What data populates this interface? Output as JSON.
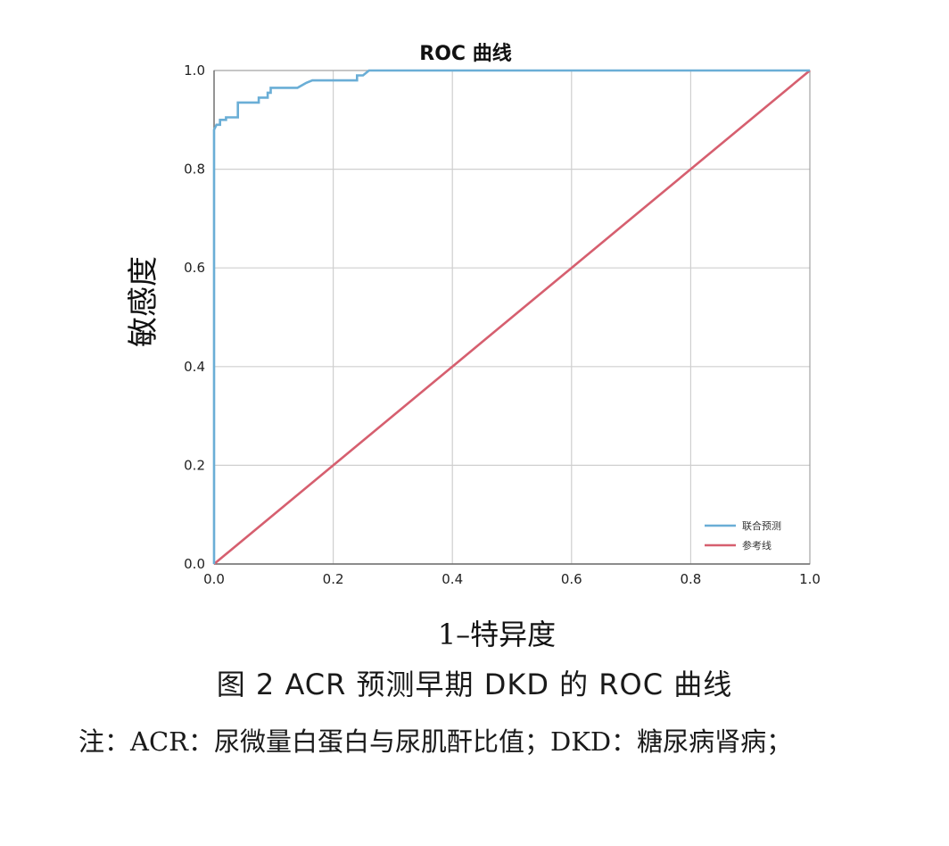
{
  "figure": {
    "caption": "图 2   ACR 预测早期 DKD 的 ROC 曲线",
    "note": "注：ACR：尿微量白蛋白与尿肌酐比值；DKD：糖尿病肾病；"
  },
  "chart_data": {
    "type": "line",
    "title": "ROC 曲线",
    "xlabel": "1–特异度",
    "ylabel": "敏感度",
    "xlim": [
      0,
      1
    ],
    "ylim": [
      0,
      1
    ],
    "grid": true,
    "legend_position": "bottom-right",
    "x_ticks": [
      "0.0",
      "0.2",
      "0.4",
      "0.6",
      "0.8",
      "1.0"
    ],
    "y_ticks": [
      "0.0",
      "0.2",
      "0.4",
      "0.6",
      "0.8",
      "1.0"
    ],
    "series": [
      {
        "name": "联合预测",
        "color": "#6aaed6",
        "x": [
          0,
          0,
          0.004,
          0.01,
          0.01,
          0.02,
          0.02,
          0.04,
          0.04,
          0.075,
          0.075,
          0.09,
          0.09,
          0.095,
          0.095,
          0.14,
          0.155,
          0.165,
          0.235,
          0.24,
          0.24,
          0.25,
          0.26,
          0.27,
          1.0
        ],
        "y": [
          0,
          0.88,
          0.89,
          0.89,
          0.9,
          0.9,
          0.905,
          0.905,
          0.935,
          0.935,
          0.945,
          0.945,
          0.955,
          0.955,
          0.965,
          0.965,
          0.975,
          0.98,
          0.98,
          0.98,
          0.99,
          0.99,
          1.0,
          1.0,
          1.0
        ]
      },
      {
        "name": "参考线",
        "color": "#d65f6f",
        "x": [
          0,
          1
        ],
        "y": [
          0,
          1
        ]
      }
    ]
  }
}
